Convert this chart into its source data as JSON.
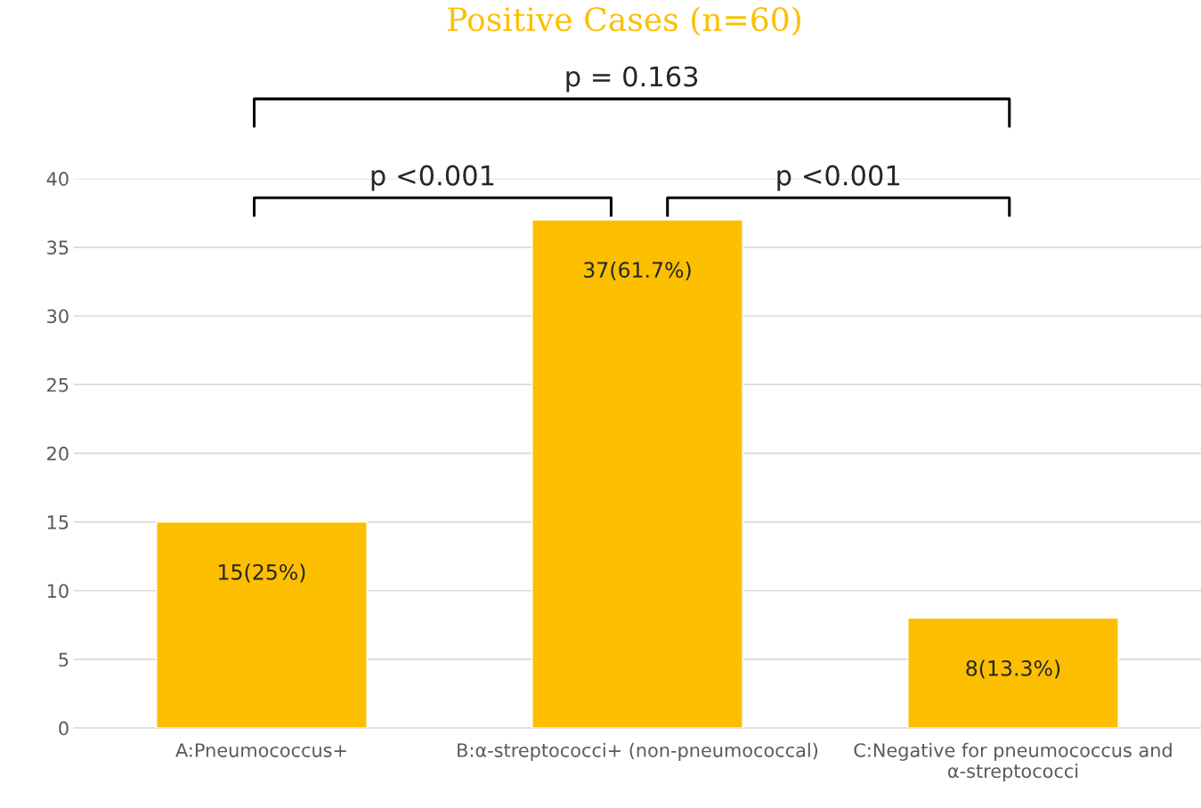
{
  "chart_data": {
    "type": "bar",
    "title": "Positive Cases (n=60)",
    "categories": [
      "A:Pneumococcus+",
      "B:α-streptococci+ (non-pneumococcal)",
      "C:Negative for pneumococcus and α-streptococci"
    ],
    "values": [
      15,
      37,
      8
    ],
    "color": "#fcbf00",
    "value_labels": [
      "15(25%)",
      "37(61.7%)",
      "8(13.3%)"
    ],
    "ylim": [
      0,
      40
    ],
    "yticks": [
      0,
      5,
      10,
      15,
      20,
      25,
      30,
      35,
      40
    ],
    "grid": "y",
    "annotations": [
      "p = 0.163",
      "p <0.001",
      "p <0.001"
    ]
  }
}
